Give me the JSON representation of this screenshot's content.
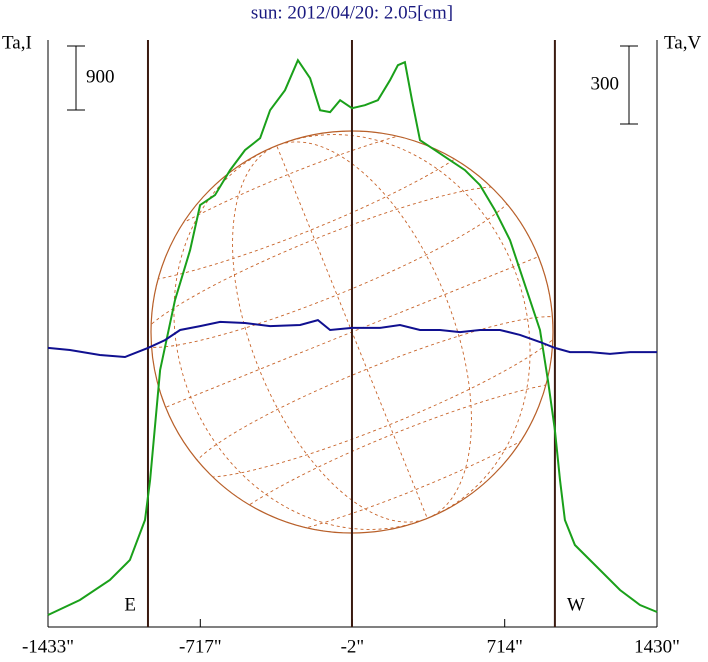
{
  "chart_data": {
    "type": "line",
    "title": "sun: 2012/04/20: 2.05[cm]",
    "ylabel": "Ta,I",
    "y2label": "Ta,V",
    "scale_bar": {
      "value": 900,
      "label": "900"
    },
    "scale_bar2": {
      "value": 300,
      "label": "300"
    },
    "limb_lines": [
      -963,
      -4,
      950
    ],
    "limb_labels": [
      "E",
      "W"
    ],
    "xlim": [
      -1433,
      1430
    ],
    "xticks": [
      {
        "value": -1433,
        "label": "-1433\""
      },
      {
        "value": -717,
        "label": "-717\""
      },
      {
        "value": -2,
        "label": "-2\""
      },
      {
        "value": 714,
        "label": "714\""
      },
      {
        "value": 1430,
        "label": "1430\""
      }
    ],
    "ylim": [
      0,
      8250
    ],
    "y2lim": [
      -1065,
      1192
    ],
    "series": [
      {
        "name": "I",
        "color": "#1aa01a",
        "x": [
          -1433,
          -1283,
          -1142,
          -1048,
          -977,
          -953,
          -906,
          -836,
          -765,
          -718,
          -648,
          -577,
          -507,
          -436,
          -389,
          -319,
          -258,
          -201,
          -154,
          -107,
          -60,
          -4,
          57,
          118,
          175,
          212,
          245,
          278,
          316,
          386,
          457,
          527,
          598,
          668,
          739,
          786,
          833,
          880,
          917,
          950,
          974,
          997,
          1044,
          1162,
          1256,
          1350,
          1430
        ],
        "values": [
          169,
          379,
          660,
          941,
          1504,
          2066,
          3611,
          4594,
          5297,
          5929,
          6070,
          6421,
          6702,
          6870,
          7264,
          7545,
          7966,
          7713,
          7264,
          7236,
          7404,
          7292,
          7334,
          7404,
          7685,
          7896,
          7938,
          7404,
          6842,
          6702,
          6561,
          6421,
          6210,
          5859,
          5437,
          5016,
          4594,
          4173,
          3470,
          2768,
          2066,
          1504,
          1152,
          801,
          520,
          309,
          211
        ]
      },
      {
        "name": "V",
        "color": "#101090",
        "axis": "y2",
        "x": [
          -1433,
          -1330,
          -1189,
          -1071,
          -963,
          -883,
          -812,
          -718,
          -624,
          -507,
          -389,
          -248,
          -164,
          -107,
          -4,
          128,
          222,
          316,
          410,
          504,
          598,
          692,
          786,
          880,
          950,
          1021,
          1115,
          1209,
          1303,
          1430
        ],
        "values": [
          8,
          0,
          -19,
          -27,
          8,
          38,
          77,
          92,
          108,
          104,
          92,
          96,
          115,
          77,
          85,
          85,
          96,
          77,
          77,
          69,
          77,
          77,
          58,
          31,
          8,
          -8,
          -8,
          -15,
          -8,
          -8
        ]
      }
    ]
  }
}
